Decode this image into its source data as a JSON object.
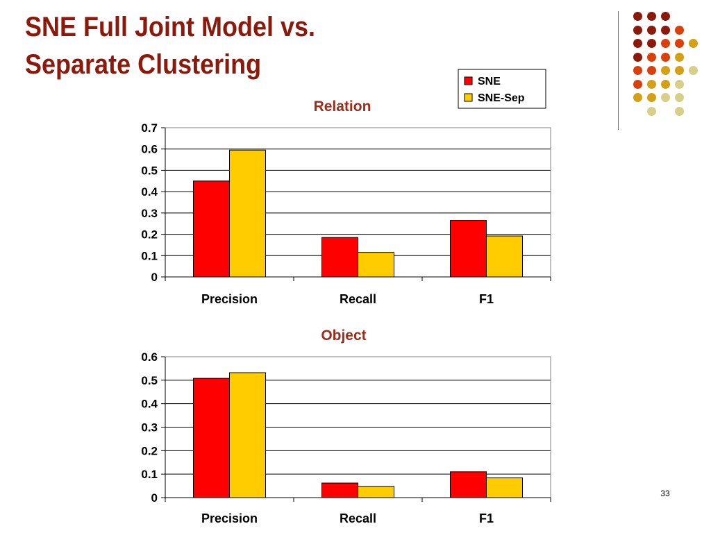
{
  "slide": {
    "title_line1": "SNE Full Joint Model vs.",
    "title_line2": "Separate Clustering",
    "page_number": "33"
  },
  "colors": {
    "title": "#8b1a0c",
    "chart_title": "#9b2d1a",
    "sne": "#ff0000",
    "sne_sep": "#ffcc00",
    "decor": [
      "#8b1a0c",
      "#d9400c",
      "#d4a017",
      "#d6d08a"
    ]
  },
  "legend": {
    "items": [
      {
        "name": "SNE",
        "color": "#ff0000"
      },
      {
        "name": "SNE-Sep",
        "color": "#ffcc00"
      }
    ]
  },
  "chart_data": [
    {
      "type": "bar",
      "title": "Relation",
      "categories": [
        "Precision",
        "Recall",
        "F1"
      ],
      "series": [
        {
          "name": "SNE",
          "values": [
            0.45,
            0.185,
            0.265
          ]
        },
        {
          "name": "SNE-Sep",
          "values": [
            0.595,
            0.115,
            0.192
          ]
        }
      ],
      "ylim": [
        0,
        0.7
      ],
      "yticks": [
        "0",
        "0.1",
        "0.2",
        "0.3",
        "0.4",
        "0.5",
        "0.6",
        "0.7"
      ],
      "grid": true,
      "legend": "top-right"
    },
    {
      "type": "bar",
      "title": "Object",
      "categories": [
        "Precision",
        "Recall",
        "F1"
      ],
      "series": [
        {
          "name": "SNE",
          "values": [
            0.508,
            0.062,
            0.11
          ]
        },
        {
          "name": "SNE-Sep",
          "values": [
            0.532,
            0.048,
            0.084
          ]
        }
      ],
      "ylim": [
        0,
        0.6
      ],
      "yticks": [
        "0",
        "0.1",
        "0.2",
        "0.3",
        "0.4",
        "0.5",
        "0.6"
      ],
      "grid": true,
      "legend": "none"
    }
  ]
}
